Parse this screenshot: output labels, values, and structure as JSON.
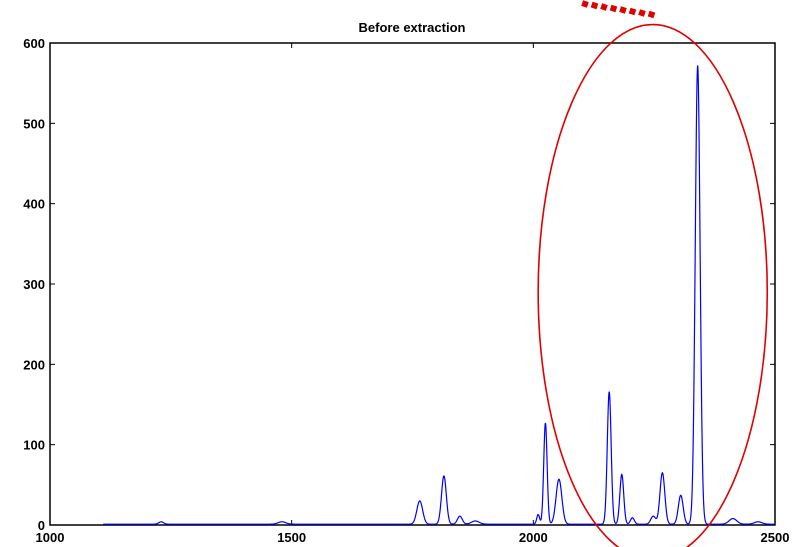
{
  "chart_data": {
    "type": "line",
    "title": "Before extraction",
    "xlabel": "",
    "ylabel": "",
    "xlim": [
      1000,
      2500
    ],
    "ylim": [
      0,
      600
    ],
    "x_ticks": [
      1000,
      1500,
      2000,
      2500
    ],
    "y_ticks": [
      0,
      100,
      200,
      300,
      400,
      500,
      600
    ],
    "grid": false,
    "series": [
      {
        "color": "#0000ff",
        "peaks": [
          {
            "x": 1230,
            "height": 3,
            "width": 5
          },
          {
            "x": 1480,
            "height": 3,
            "width": 8
          },
          {
            "x": 1765,
            "height": 29,
            "width": 6
          },
          {
            "x": 1815,
            "height": 60,
            "width": 5
          },
          {
            "x": 1848,
            "height": 10,
            "width": 5
          },
          {
            "x": 1880,
            "height": 4,
            "width": 8
          },
          {
            "x": 2025,
            "height": 126,
            "width": 3.5
          },
          {
            "x": 2053,
            "height": 56,
            "width": 6
          },
          {
            "x": 2010,
            "height": 12,
            "width": 3
          },
          {
            "x": 2157,
            "height": 165,
            "width": 4
          },
          {
            "x": 2183,
            "height": 62,
            "width": 4
          },
          {
            "x": 2205,
            "height": 8,
            "width": 4
          },
          {
            "x": 2248,
            "height": 10,
            "width": 5
          },
          {
            "x": 2267,
            "height": 64,
            "width": 5
          },
          {
            "x": 2305,
            "height": 36,
            "width": 5
          },
          {
            "x": 2340,
            "height": 571,
            "width": 5
          },
          {
            "x": 2413,
            "height": 7,
            "width": 8
          },
          {
            "x": 2465,
            "height": 3,
            "width": 8
          }
        ],
        "x_start": 1110,
        "x_end": 2500,
        "baseline": 1
      }
    ],
    "annotation_ellipse": {
      "cx": 2247,
      "cy": 290,
      "rx": 237,
      "ry": 333,
      "color": "#e00000"
    },
    "annotation_dots": {
      "color": "#e00000",
      "count": 8
    }
  }
}
